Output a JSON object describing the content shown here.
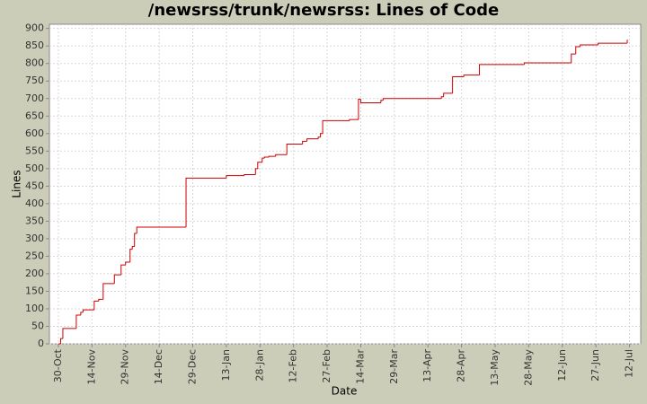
{
  "chart_data": {
    "type": "step",
    "title": "/newsrss/trunk/newsrss: Lines of Code",
    "x_label": "Date",
    "y_label": "Lines",
    "color": "#cc0000",
    "grid": true,
    "x": [
      "30-Oct",
      "31-Oct",
      "1-Nov",
      "7-Nov",
      "9-Nov",
      "10-Nov",
      "15-Nov",
      "17-Nov",
      "19-Nov",
      "24-Nov",
      "27-Nov",
      "29-Nov",
      "1-Dec",
      "2-Dec",
      "3-Dec",
      "4-Dec",
      "26-Dec",
      "13-Jan",
      "21-Jan",
      "26-Jan",
      "27-Jan",
      "29-Jan",
      "30-Jan",
      "1-Feb",
      "4-Feb",
      "9-Feb",
      "16-Feb",
      "18-Feb",
      "23-Feb",
      "24-Feb",
      "25-Feb",
      "9-Mar",
      "13-Mar",
      "14-Mar",
      "23-Mar",
      "24-Mar",
      "19-Apr",
      "20-Apr",
      "24-Apr",
      "29-Apr",
      "6-May",
      "26-May",
      "16-Jun",
      "18-Jun",
      "20-Jun",
      "28-Jun",
      "11-Jul"
    ],
    "values": [
      0,
      15,
      44,
      82,
      90,
      97,
      122,
      127,
      172,
      197,
      225,
      233,
      270,
      278,
      315,
      333,
      473,
      480,
      483,
      500,
      518,
      530,
      533,
      535,
      540,
      570,
      578,
      585,
      590,
      600,
      637,
      640,
      698,
      688,
      695,
      700,
      705,
      715,
      762,
      767,
      797,
      802,
      827,
      848,
      853,
      858,
      868
    ],
    "xlim": [
      "26-Oct",
      "17-Jul"
    ],
    "xticks": [
      "30-Oct",
      "14-Nov",
      "29-Nov",
      "14-Dec",
      "29-Dec",
      "13-Jan",
      "28-Jan",
      "12-Feb",
      "27-Feb",
      "14-Mar",
      "29-Mar",
      "13-Apr",
      "28-Apr",
      "13-May",
      "28-May",
      "12-Jun",
      "27-Jun",
      "12-Jul"
    ],
    "ylim": [
      0,
      912
    ],
    "yticks": [
      0,
      50,
      100,
      150,
      200,
      250,
      300,
      350,
      400,
      450,
      500,
      550,
      600,
      650,
      700,
      750,
      800,
      850,
      900
    ]
  }
}
